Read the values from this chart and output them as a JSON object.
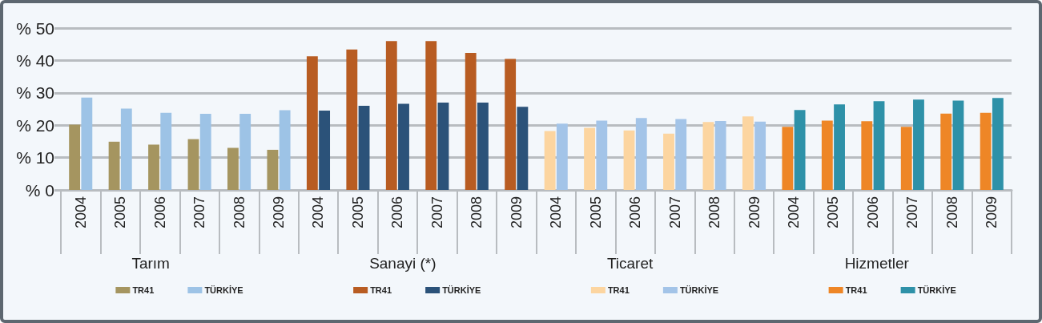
{
  "chart_data": {
    "type": "bar",
    "categories": [
      "2004",
      "2005",
      "2006",
      "2007",
      "2008",
      "2009",
      "2004",
      "2005",
      "2006",
      "2007",
      "2008",
      "2009",
      "2004",
      "2005",
      "2006",
      "2007",
      "2008",
      "2009",
      "2004",
      "2005",
      "2006",
      "2007",
      "2008",
      "2009"
    ],
    "series": [
      {
        "name": "TR41",
        "color": "#a59560",
        "values": [
          20.2,
          14.9,
          14.0,
          15.7,
          13.0,
          12.4,
          null,
          null,
          null,
          null,
          null,
          null,
          null,
          null,
          null,
          null,
          null,
          null,
          null,
          null,
          null,
          null,
          null,
          null
        ]
      },
      {
        "name": "TÜRKİYE",
        "color": "#9dc3e6",
        "values": [
          28.5,
          25.1,
          23.8,
          23.5,
          23.5,
          24.6,
          null,
          null,
          null,
          null,
          null,
          null,
          null,
          null,
          null,
          null,
          null,
          null,
          null,
          null,
          null,
          null,
          null,
          null
        ]
      },
      {
        "name": "TR41",
        "color": "#b85c22",
        "values": [
          null,
          null,
          null,
          null,
          null,
          null,
          41.3,
          43.4,
          46.0,
          46.0,
          42.3,
          40.5,
          null,
          null,
          null,
          null,
          null,
          null,
          null,
          null,
          null,
          null,
          null,
          null
        ]
      },
      {
        "name": "TÜRKİYE",
        "color": "#2b5279",
        "values": [
          null,
          null,
          null,
          null,
          null,
          null,
          24.5,
          26.0,
          26.6,
          27.0,
          27.0,
          25.7,
          null,
          null,
          null,
          null,
          null,
          null,
          null,
          null,
          null,
          null,
          null,
          null
        ]
      },
      {
        "name": "TR41",
        "color": "#fcd5a0",
        "values": [
          null,
          null,
          null,
          null,
          null,
          null,
          null,
          null,
          null,
          null,
          null,
          null,
          18.2,
          19.2,
          18.4,
          17.4,
          21.0,
          22.7,
          null,
          null,
          null,
          null,
          null,
          null
        ]
      },
      {
        "name": "TÜRKİYE",
        "color": "#a3c4e8",
        "values": [
          null,
          null,
          null,
          null,
          null,
          null,
          null,
          null,
          null,
          null,
          null,
          null,
          20.5,
          21.4,
          22.2,
          21.9,
          21.3,
          21.1,
          null,
          null,
          null,
          null,
          null,
          null
        ]
      },
      {
        "name": "TR41",
        "color": "#ee8626",
        "values": [
          null,
          null,
          null,
          null,
          null,
          null,
          null,
          null,
          null,
          null,
          null,
          null,
          null,
          null,
          null,
          null,
          null,
          null,
          19.5,
          21.4,
          21.2,
          19.5,
          23.6,
          23.8
        ]
      },
      {
        "name": "TÜRKİYE",
        "color": "#2e91a8",
        "values": [
          null,
          null,
          null,
          null,
          null,
          null,
          null,
          null,
          null,
          null,
          null,
          null,
          null,
          null,
          null,
          null,
          null,
          null,
          24.7,
          26.4,
          27.4,
          27.9,
          27.6,
          28.4
        ]
      }
    ],
    "annotations": [
      "Tarım",
      "Sanayi (*)",
      "Ticaret",
      "Hizmetler"
    ],
    "ylim": [
      0,
      50
    ],
    "yticks": [
      {
        "value": 0,
        "label": "% 0"
      },
      {
        "value": 10,
        "label": "% 10"
      },
      {
        "value": 20,
        "label": "% 20"
      },
      {
        "value": 30,
        "label": "% 30"
      },
      {
        "value": 40,
        "label": "% 40"
      },
      {
        "value": 50,
        "label": "% 50"
      }
    ],
    "grid": "y",
    "legend": "bottom"
  }
}
